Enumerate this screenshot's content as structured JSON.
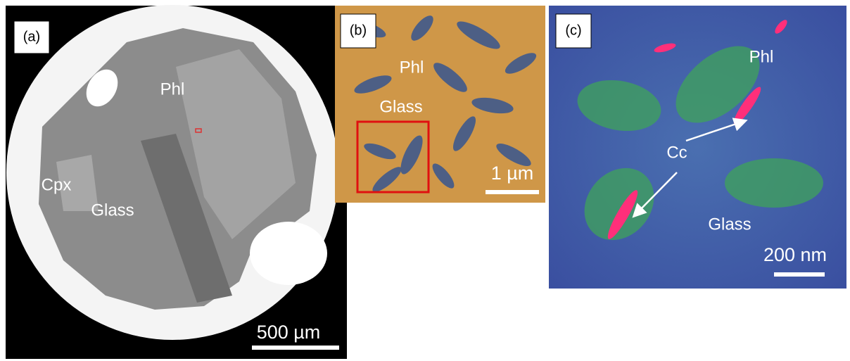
{
  "panels": [
    {
      "label": "(a)",
      "annotations": [
        "Phl",
        "Cpx",
        "Glass"
      ],
      "scale_bar": "500 µm"
    },
    {
      "label": "(b)",
      "annotations": [
        "Phl",
        "Glass"
      ],
      "scale_bar": "1 µm"
    },
    {
      "label": "(c)",
      "annotations": [
        "Phl",
        "Cc",
        "Glass"
      ],
      "scale_bar": "200 nm"
    }
  ]
}
